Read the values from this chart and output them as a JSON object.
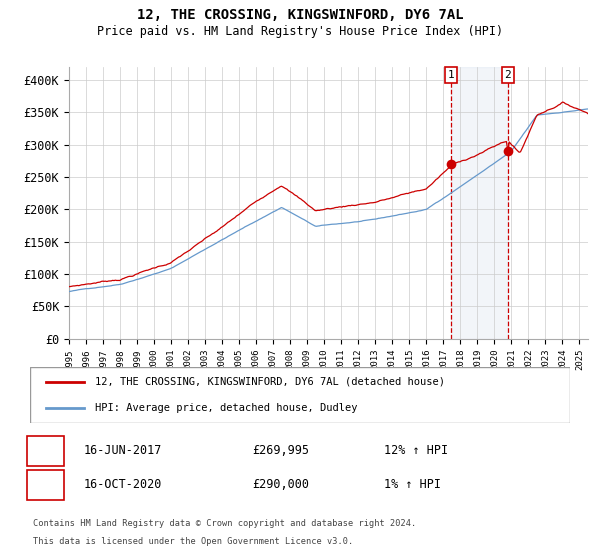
{
  "title": "12, THE CROSSING, KINGSWINFORD, DY6 7AL",
  "subtitle": "Price paid vs. HM Land Registry's House Price Index (HPI)",
  "legend_line1": "12, THE CROSSING, KINGSWINFORD, DY6 7AL (detached house)",
  "legend_line2": "HPI: Average price, detached house, Dudley",
  "t1_date": "16-JUN-2017",
  "t1_price": "£269,995",
  "t1_hpi": "12% ↑ HPI",
  "t2_date": "16-OCT-2020",
  "t2_price": "£290,000",
  "t2_hpi": "1% ↑ HPI",
  "footnote": "Contains HM Land Registry data © Crown copyright and database right 2024.\nThis data is licensed under the Open Government Licence v3.0.",
  "hpi_color": "#6699cc",
  "price_color": "#cc0000",
  "marker_color": "#cc0000",
  "vline_color": "#cc0000",
  "vline1_x": 2017.46,
  "vline2_x": 2020.79,
  "marker1_y": 269995,
  "marker2_y": 290000,
  "shade_color": "#c5d5e8",
  "ylim_min": 0,
  "ylim_max": 420000,
  "xlim_min": 1995,
  "xlim_max": 2025.5,
  "yticks": [
    0,
    50000,
    100000,
    150000,
    200000,
    250000,
    300000,
    350000,
    400000
  ],
  "xticks": [
    1995,
    1996,
    1997,
    1998,
    1999,
    2000,
    2001,
    2002,
    2003,
    2004,
    2005,
    2006,
    2007,
    2008,
    2009,
    2010,
    2011,
    2012,
    2013,
    2014,
    2015,
    2016,
    2017,
    2018,
    2019,
    2020,
    2021,
    2022,
    2023,
    2024,
    2025
  ]
}
